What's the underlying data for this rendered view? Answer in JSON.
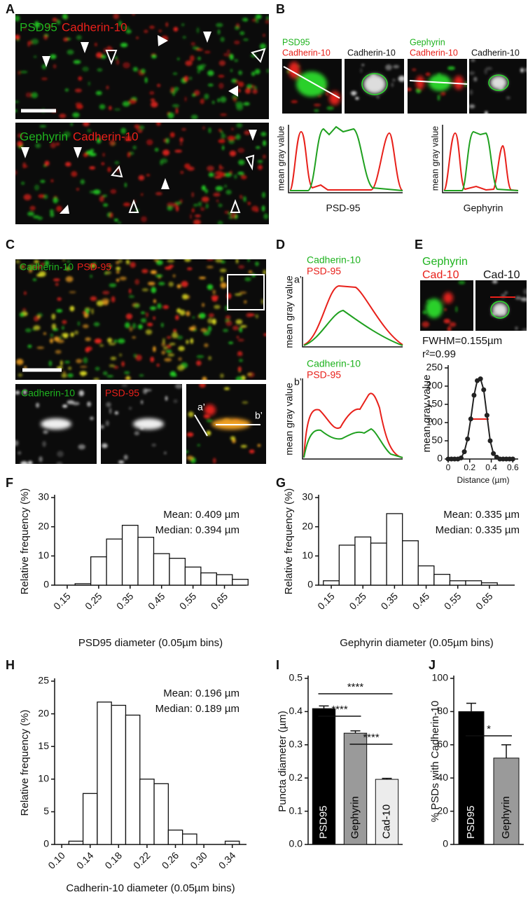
{
  "panel_labels": [
    "A",
    "B",
    "C",
    "D",
    "E",
    "F",
    "G",
    "H",
    "I",
    "J"
  ],
  "panel_a": {
    "top_labels": [
      "PSD95",
      "Cadherin-10"
    ],
    "bottom_labels": [
      "Gephyrin",
      "Cadherin-10"
    ]
  },
  "panel_b": {
    "image_labels": [
      "PSD95",
      "Cadherin-10",
      "Cadherin-10",
      "Gephyrin",
      "Cadherin-10",
      "Cadherin-10"
    ],
    "plots": [
      {
        "ylabel": "mean gray value",
        "xlabel": "PSD-95"
      },
      {
        "ylabel": "mean gray value",
        "xlabel": "Gephyrin"
      }
    ]
  },
  "panel_c": {
    "overview_labels": [
      "Cadherin-10",
      "PSD-95"
    ],
    "inset_labels": [
      "Cadherin-10",
      "PSD-95"
    ],
    "line_labels": [
      "a’",
      "b’"
    ]
  },
  "panel_d": {
    "plots": [
      {
        "tag": "a’",
        "legend": [
          "Cadherin-10",
          "PSD-95"
        ],
        "ylabel": "mean gray value"
      },
      {
        "tag": "b’",
        "legend": [
          "Cadherin-10",
          "PSD-95"
        ],
        "ylabel": "mean gray value"
      }
    ]
  },
  "panel_e": {
    "merge_labels": [
      "Gephyrin",
      "Cad-10"
    ],
    "gray_label": "Cad-10",
    "fwhm": "FWHM=0.155µm",
    "r2": "r²=0.99"
  },
  "chart_data": [
    {
      "type": "scatter",
      "ylabel": "mean gray value",
      "xlabel": "Distance (µm)",
      "x": [
        0,
        0.03,
        0.06,
        0.09,
        0.12,
        0.15,
        0.18,
        0.21,
        0.24,
        0.27,
        0.3,
        0.33,
        0.36,
        0.39,
        0.42,
        0.45,
        0.48,
        0.51,
        0.54,
        0.57,
        0.6
      ],
      "values": [
        0,
        0,
        0,
        0,
        3,
        20,
        55,
        110,
        175,
        215,
        220,
        190,
        120,
        50,
        15,
        5,
        0,
        0,
        0,
        0,
        0
      ],
      "xlim": [
        0,
        0.65
      ],
      "ylim": [
        0,
        250
      ],
      "xticks": [
        0,
        0.2,
        0.4,
        0.6
      ],
      "yticks": [
        0,
        50,
        100,
        150,
        200,
        250
      ],
      "color": "#222222"
    },
    {
      "type": "histogram",
      "ylabel": "Relative frequency (%)",
      "xlabel": "PSD95 diameter (0.05µm bins)",
      "annotations": [
        "Mean: 0.409 µm",
        "Median: 0.394 µm"
      ],
      "bins": [
        0.175,
        0.225,
        0.275,
        0.325,
        0.375,
        0.425,
        0.475,
        0.525,
        0.575,
        0.625,
        0.675,
        0.725
      ],
      "values": [
        0.5,
        9.7,
        15.8,
        20.5,
        16.4,
        10.8,
        9.2,
        6.2,
        4.2,
        3.6,
        2.0
      ],
      "xlim": [
        0.11,
        0.72
      ],
      "ylim": [
        0,
        30
      ],
      "xticks": [
        0.15,
        0.25,
        0.35,
        0.45,
        0.55,
        0.65
      ],
      "yticks": [
        0,
        10,
        20,
        30
      ],
      "color": "#ffffff"
    },
    {
      "type": "histogram",
      "ylabel": "Relative frequency (%)",
      "xlabel": "Gephyrin diameter (0.05µm bins)",
      "annotations": [
        "Mean: 0.335 µm",
        "Median: 0.335 µm"
      ],
      "bins": [
        0.125,
        0.175,
        0.225,
        0.275,
        0.325,
        0.375,
        0.425,
        0.475,
        0.525,
        0.575,
        0.625,
        0.675
      ],
      "values": [
        1.5,
        13.7,
        16.5,
        14.4,
        24.5,
        15.2,
        6.6,
        3.7,
        1.5,
        1.5,
        0.8
      ],
      "xlim": [
        0.11,
        0.73
      ],
      "ylim": [
        0,
        30
      ],
      "xticks": [
        0.15,
        0.25,
        0.35,
        0.45,
        0.55,
        0.65
      ],
      "yticks": [
        0,
        10,
        20,
        30
      ],
      "color": "#ffffff"
    },
    {
      "type": "histogram",
      "ylabel": "Relative frequency (%)",
      "xlabel": "Cadherin-10 diameter (0.05µm bins)",
      "annotations": [
        "Mean: 0.196 µm",
        "Median: 0.189 µm"
      ],
      "bins": [
        0.11,
        0.13,
        0.15,
        0.17,
        0.19,
        0.21,
        0.23,
        0.25,
        0.27,
        0.29,
        0.31,
        0.33,
        0.35
      ],
      "values": [
        0.5,
        7.8,
        21.8,
        21.3,
        19.8,
        10.0,
        9.3,
        2.2,
        1.6,
        0,
        0,
        0.5
      ],
      "xlim": [
        0.09,
        0.36
      ],
      "ylim": [
        0,
        25
      ],
      "xticks": [
        {
          "value": 0.1,
          "label": "0.10"
        },
        0.14,
        0.18,
        0.22,
        0.26,
        {
          "value": 0.3,
          "label": "0.30"
        },
        0.34
      ],
      "yticks": [
        0,
        5,
        10,
        15,
        20,
        25
      ],
      "color": "#ffffff"
    },
    {
      "type": "bar",
      "ylabel": "Puncta diameter (µm)",
      "categories": [
        "PSD95",
        "Gephyrin",
        "Cad-10"
      ],
      "values": [
        0.409,
        0.335,
        0.196
      ],
      "errors": [
        0.008,
        0.007,
        0.003
      ],
      "colors": [
        "#000000",
        "#9a9a9a",
        "#ececec"
      ],
      "ylim": [
        0,
        0.5
      ],
      "yticks": [
        {
          "value": 0,
          "label": "0.0"
        },
        0.1,
        0.2,
        0.3,
        0.4,
        0.5
      ],
      "significance": [
        {
          "label": "****",
          "between": [
            0,
            2
          ]
        },
        {
          "label": "****",
          "between": [
            0,
            1
          ]
        },
        {
          "label": "****",
          "between": [
            1,
            2
          ]
        }
      ]
    },
    {
      "type": "bar",
      "ylabel": "% PSDs with Cadherin-10",
      "categories": [
        "PSD95",
        "Gephyrin"
      ],
      "values": [
        80,
        52
      ],
      "errors": [
        5,
        8
      ],
      "colors": [
        "#000000",
        "#9a9a9a"
      ],
      "ylim": [
        0,
        100
      ],
      "yticks": [
        0,
        20,
        40,
        60,
        80,
        100
      ],
      "significance": [
        {
          "label": "*",
          "between": [
            0,
            1
          ]
        }
      ]
    }
  ]
}
